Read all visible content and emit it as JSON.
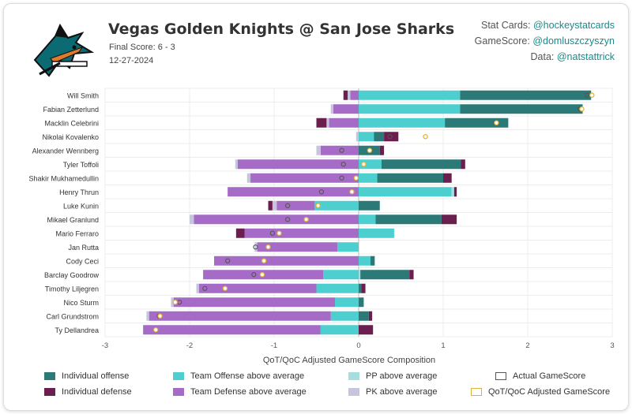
{
  "header": {
    "title": "Vegas Golden Knights @ San Jose Sharks",
    "final_score": "Final Score: 6 - 3",
    "date": "12-27-2024"
  },
  "credits": {
    "line1_label": "Stat Cards: ",
    "line1_handle": "@hockeystatcards",
    "line2_label": "GameScore: ",
    "line2_handle": "@domluszczyszyn",
    "line3_label": "Data: ",
    "line3_handle": "@natstattrick"
  },
  "colors": {
    "individual_offense": "#2b7a78",
    "individual_defense": "#6b1f4f",
    "team_offense": "#4ecfcf",
    "team_defense": "#a56bc6",
    "pp": "#a7dce0",
    "pk": "#c5c5dc",
    "actual_marker": "#555555",
    "adjusted_marker": "#e2b33a"
  },
  "chart_data": {
    "type": "bar",
    "orientation": "horizontal-stacked",
    "xlabel": "QoT/QoC Adjusted GameScore Composition",
    "xlim": [
      -3,
      3
    ],
    "xticks": [
      -3,
      -2,
      -1,
      0,
      1,
      2,
      3
    ],
    "grid": true,
    "legend_placement": "bottom",
    "players": [
      {
        "name": "Will Smith",
        "ind_off": 1.55,
        "ind_def": -0.05,
        "team_off": 1.2,
        "team_def": -0.1,
        "pp": 0,
        "pk": -0.03,
        "actual": 2.7,
        "adjusted": 2.76
      },
      {
        "name": "Fabian Zetterlund",
        "ind_off": 1.45,
        "ind_def": 0,
        "team_off": 1.2,
        "team_def": -0.3,
        "pp": 0,
        "pk": -0.03,
        "actual": 2.62,
        "adjusted": 2.64
      },
      {
        "name": "Macklin Celebrini",
        "ind_off": 0.75,
        "ind_def": -0.12,
        "team_off": 1.02,
        "team_def": -0.35,
        "pp": 0,
        "pk": -0.03,
        "actual": 1.62,
        "adjusted": 1.63
      },
      {
        "name": "Nikolai Kovalenko",
        "ind_off": 0.12,
        "ind_def": 0.17,
        "team_off": 0.18,
        "team_def": 0,
        "pp": 0,
        "pk": -0.03,
        "actual": 0.37,
        "adjusted": 0.79
      },
      {
        "name": "Alexander Wennberg",
        "ind_off": 0.25,
        "ind_def": 0.05,
        "team_off": 0,
        "team_def": -0.45,
        "pp": 0,
        "pk": -0.05,
        "actual": -0.2,
        "adjusted": 0.13
      },
      {
        "name": "Tyler Toffoli",
        "ind_off": 0.94,
        "ind_def": 0.05,
        "team_off": 0.27,
        "team_def": -1.43,
        "pp": 0,
        "pk": -0.03,
        "actual": -0.18,
        "adjusted": 0.06
      },
      {
        "name": "Shakir Mukhamedullin",
        "ind_off": 0.78,
        "ind_def": 0.1,
        "team_off": 0.22,
        "team_def": -1.28,
        "pp": 0,
        "pk": -0.04,
        "actual": -0.2,
        "adjusted": -0.03
      },
      {
        "name": "Henry Thrun",
        "ind_off": 0,
        "ind_def": 0.03,
        "team_off": 1.1,
        "team_def": -1.55,
        "pp": 0.03,
        "pk": 0,
        "actual": -0.44,
        "adjusted": -0.08
      },
      {
        "name": "Luke Kunin",
        "ind_off": 0.25,
        "ind_def": -0.05,
        "team_off": -0.52,
        "team_def": -0.45,
        "pp": 0,
        "pk": -0.05,
        "actual": -0.84,
        "adjusted": -0.48
      },
      {
        "name": "Mikael Granlund",
        "ind_off": 0.78,
        "ind_def": 0.18,
        "team_off": 0.2,
        "team_def": -1.95,
        "pp": 0,
        "pk": -0.05,
        "actual": -0.84,
        "adjusted": -0.62
      },
      {
        "name": "Mario Ferraro",
        "ind_off": 0,
        "ind_def": -0.1,
        "team_off": 0.42,
        "team_def": -1.35,
        "pp": 0,
        "pk": 0,
        "actual": -1.02,
        "adjusted": -0.94
      },
      {
        "name": "Jan Rutta",
        "ind_off": 0,
        "ind_def": 0,
        "team_off": -0.25,
        "team_def": -0.95,
        "pp": 0,
        "pk": -0.03,
        "actual": -1.22,
        "adjusted": -1.07
      },
      {
        "name": "Cody Ceci",
        "ind_off": 0.05,
        "ind_def": 0,
        "team_off": 0.14,
        "team_def": -1.71,
        "pp": 0,
        "pk": 0,
        "actual": -1.55,
        "adjusted": -1.12
      },
      {
        "name": "Barclay Goodrow",
        "ind_off": 0.58,
        "ind_def": 0.05,
        "team_off": -0.42,
        "team_def": -1.42,
        "pp": 0.02,
        "pk": 0,
        "actual": -1.24,
        "adjusted": -1.14
      },
      {
        "name": "Timothy Liljegren",
        "ind_off": 0.03,
        "ind_def": 0.05,
        "team_off": -0.5,
        "team_def": -1.39,
        "pp": 0,
        "pk": -0.03,
        "actual": -1.82,
        "adjusted": -1.58
      },
      {
        "name": "Nico Sturm",
        "ind_off": 0.06,
        "ind_def": 0,
        "team_off": -0.28,
        "team_def": -1.91,
        "pp": 0,
        "pk": -0.03,
        "actual": -2.12,
        "adjusted": -2.17
      },
      {
        "name": "Carl Grundstrom",
        "ind_off": 0.12,
        "ind_def": 0.04,
        "team_off": -0.33,
        "team_def": -2.15,
        "pp": 0,
        "pk": -0.03,
        "actual": -2.36,
        "adjusted": -2.35
      },
      {
        "name": "Ty Dellandrea",
        "ind_off": 0,
        "ind_def": 0.17,
        "team_off": -0.45,
        "team_def": -2.1,
        "pp": 0,
        "pk": 0,
        "actual": -2.4,
        "adjusted": -2.4
      }
    ]
  },
  "legend": {
    "individual_offense": "Individual offense",
    "individual_defense": "Individual defense",
    "team_offense": "Team Offense above average",
    "team_defense": "Team Defense above average",
    "pp": "PP above average",
    "pk": "PK above average",
    "actual": "Actual GameScore",
    "adjusted": "QoT/QoC Adjusted GameScore"
  }
}
